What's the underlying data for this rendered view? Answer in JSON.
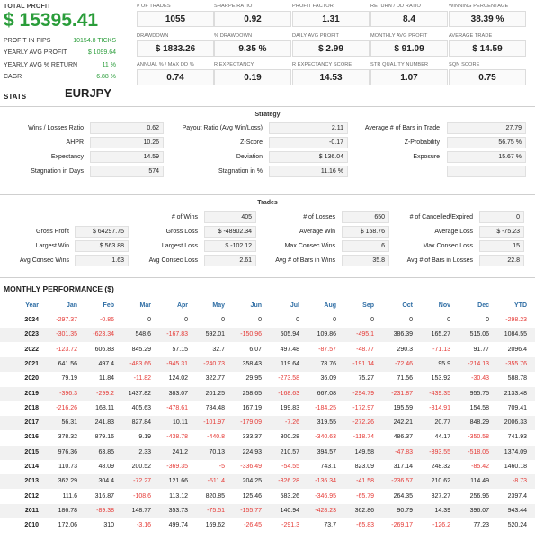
{
  "summary": {
    "total_profit_label": "TOTAL PROFIT",
    "total_profit_value": "$ 15395.41",
    "rows": [
      {
        "label": "PROFIT IN PIPS",
        "value": "10154.8 TICKS"
      },
      {
        "label": "YEARLY AVG PROFIT",
        "value": "$ 1099.64"
      },
      {
        "label": "YEARLY AVG % RETURN",
        "value": "11 %"
      },
      {
        "label": "CAGR",
        "value": "6.88 %"
      }
    ],
    "stats_label": "STATS",
    "symbol": "EURJPY"
  },
  "kpis": [
    {
      "label": "# OF TRADES",
      "value": "1055"
    },
    {
      "label": "SHARPE RATIO",
      "value": "0.92"
    },
    {
      "label": "PROFIT FACTOR",
      "value": "1.31"
    },
    {
      "label": "RETURN / DD RATIO",
      "value": "8.4"
    },
    {
      "label": "WINNING PERCENTAGE",
      "value": "38.39 %"
    },
    {
      "label": "DRAWDOWN",
      "value": "$ 1833.26"
    },
    {
      "label": "% DRAWDOWN",
      "value": "9.35 %"
    },
    {
      "label": "DAILY AVG PROFIT",
      "value": "$ 2.99"
    },
    {
      "label": "MONTHLY AVG PROFIT",
      "value": "$ 91.09"
    },
    {
      "label": "AVERAGE TRADE",
      "value": "$ 14.59"
    },
    {
      "label": "ANNUAL % / MAX DD %",
      "value": "0.74"
    },
    {
      "label": "R EXPECTANCY",
      "value": "0.19"
    },
    {
      "label": "R EXPECTANCY SCORE",
      "value": "14.53"
    },
    {
      "label": "STR QUALITY NUMBER",
      "value": "1.07"
    },
    {
      "label": "SQN SCORE",
      "value": "0.75"
    }
  ],
  "strategy": {
    "title": "Strategy",
    "rows": [
      [
        {
          "label": "Wins / Losses Ratio",
          "value": "0.62"
        },
        {
          "label": "Payout Ratio (Avg Win/Loss)",
          "value": "2.11"
        },
        {
          "label": "Average # of Bars in Trade",
          "value": "27.79"
        }
      ],
      [
        {
          "label": "AHPR",
          "value": "10.26"
        },
        {
          "label": "Z-Score",
          "value": "-0.17"
        },
        {
          "label": "Z-Probability",
          "value": "56.75 %"
        }
      ],
      [
        {
          "label": "Expectancy",
          "value": "14.59"
        },
        {
          "label": "Deviation",
          "value": "$ 136.04"
        },
        {
          "label": "Exposure",
          "value": "15.67 %"
        }
      ],
      [
        {
          "label": "Stagnation in Days",
          "value": "574"
        },
        {
          "label": "Stagnation in %",
          "value": "11.16 %"
        },
        {
          "label": "",
          "value": ""
        }
      ]
    ]
  },
  "trades": {
    "title": "Trades",
    "rows": [
      [
        {
          "label": "",
          "value": ""
        },
        {
          "label": "# of Wins",
          "value": "405"
        },
        {
          "label": "# of Losses",
          "value": "650"
        },
        {
          "label": "# of Cancelled/Expired",
          "value": "0"
        }
      ],
      [
        {
          "label": "Gross Profit",
          "value": "$ 64297.75"
        },
        {
          "label": "Gross Loss",
          "value": "$ -48902.34"
        },
        {
          "label": "Average Win",
          "value": "$ 158.76"
        },
        {
          "label": "Average Loss",
          "value": "$ -75.23"
        }
      ],
      [
        {
          "label": "Largest Win",
          "value": "$ 563.88"
        },
        {
          "label": "Largest Loss",
          "value": "$ -102.12"
        },
        {
          "label": "Max Consec Wins",
          "value": "6"
        },
        {
          "label": "Max Consec Loss",
          "value": "15"
        }
      ],
      [
        {
          "label": "Avg Consec Wins",
          "value": "1.63"
        },
        {
          "label": "Avg Consec Loss",
          "value": "2.61"
        },
        {
          "label": "Avg # of Bars in Wins",
          "value": "35.8"
        },
        {
          "label": "Avg # of Bars in Losses",
          "value": "22.8"
        }
      ]
    ]
  },
  "monthly": {
    "title": "MONTHLY PERFORMANCE ($)",
    "headers": [
      "Year",
      "Jan",
      "Feb",
      "Mar",
      "Apr",
      "May",
      "Jun",
      "Jul",
      "Aug",
      "Sep",
      "Oct",
      "Nov",
      "Dec",
      "YTD"
    ],
    "rows": [
      {
        "year": "2024",
        "values": [
          "-297.37",
          "-0.86",
          "0",
          "0",
          "0",
          "0",
          "0",
          "0",
          "0",
          "0",
          "0",
          "0",
          "-298.23"
        ]
      },
      {
        "year": "2023",
        "values": [
          "-301.35",
          "-623.34",
          "548.6",
          "-167.83",
          "592.01",
          "-150.96",
          "505.94",
          "109.86",
          "-495.1",
          "386.39",
          "165.27",
          "515.06",
          "1084.55"
        ]
      },
      {
        "year": "2022",
        "values": [
          "-123.72",
          "606.83",
          "845.29",
          "57.15",
          "32.7",
          "6.07",
          "497.48",
          "-87.57",
          "-48.77",
          "290.3",
          "-71.13",
          "91.77",
          "2096.4"
        ]
      },
      {
        "year": "2021",
        "values": [
          "641.56",
          "497.4",
          "-483.66",
          "-945.31",
          "-240.73",
          "358.43",
          "119.64",
          "78.76",
          "-191.14",
          "-72.46",
          "95.9",
          "-214.13",
          "-355.76"
        ]
      },
      {
        "year": "2020",
        "values": [
          "79.19",
          "11.84",
          "-11.82",
          "124.02",
          "322.77",
          "29.95",
          "-273.58",
          "36.09",
          "75.27",
          "71.56",
          "153.92",
          "-30.43",
          "588.78"
        ]
      },
      {
        "year": "2019",
        "values": [
          "-396.3",
          "-299.2",
          "1437.82",
          "383.07",
          "201.25",
          "258.65",
          "-168.63",
          "667.08",
          "-294.79",
          "-231.87",
          "-439.35",
          "955.75",
          "2133.48"
        ]
      },
      {
        "year": "2018",
        "values": [
          "-216.26",
          "168.11",
          "405.63",
          "-478.61",
          "784.48",
          "167.19",
          "199.83",
          "-184.25",
          "-172.97",
          "195.59",
          "-314.91",
          "154.58",
          "709.41"
        ]
      },
      {
        "year": "2017",
        "values": [
          "56.31",
          "241.83",
          "827.84",
          "10.11",
          "-101.97",
          "-179.09",
          "-7.26",
          "319.55",
          "-272.26",
          "242.21",
          "20.77",
          "848.29",
          "2006.33"
        ]
      },
      {
        "year": "2016",
        "values": [
          "378.32",
          "879.16",
          "9.19",
          "-438.78",
          "-440.8",
          "333.37",
          "300.28",
          "-340.63",
          "-118.74",
          "486.37",
          "44.17",
          "-350.58",
          "741.93"
        ]
      },
      {
        "year": "2015",
        "values": [
          "976.36",
          "63.85",
          "2.33",
          "241.2",
          "70.13",
          "224.93",
          "210.57",
          "394.57",
          "149.58",
          "-47.83",
          "-393.55",
          "-518.05",
          "1374.09"
        ]
      },
      {
        "year": "2014",
        "values": [
          "110.73",
          "48.09",
          "200.52",
          "-369.35",
          "-5",
          "-336.49",
          "-54.55",
          "743.1",
          "823.09",
          "317.14",
          "248.32",
          "-85.42",
          "1460.18"
        ]
      },
      {
        "year": "2013",
        "values": [
          "362.29",
          "304.4",
          "-72.27",
          "121.66",
          "-511.4",
          "204.25",
          "-326.28",
          "-136.34",
          "-41.58",
          "-236.57",
          "210.62",
          "114.49",
          "-8.73"
        ]
      },
      {
        "year": "2012",
        "values": [
          "111.6",
          "316.87",
          "-108.6",
          "113.12",
          "820.85",
          "125.46",
          "583.26",
          "-346.95",
          "-65.79",
          "264.35",
          "327.27",
          "256.96",
          "2397.4"
        ]
      },
      {
        "year": "2011",
        "values": [
          "186.78",
          "-89.38",
          "148.77",
          "353.73",
          "-75.51",
          "-155.77",
          "140.94",
          "-428.23",
          "362.86",
          "90.79",
          "14.39",
          "396.07",
          "943.44"
        ]
      },
      {
        "year": "2010",
        "values": [
          "172.06",
          "310",
          "-3.16",
          "499.74",
          "169.62",
          "-26.45",
          "-291.3",
          "73.7",
          "-65.83",
          "-269.17",
          "-126.2",
          "77.23",
          "520.24"
        ]
      }
    ]
  },
  "colors": {
    "positive": "#2a9d3a",
    "negative": "#e53935",
    "header": "#2e6da4"
  }
}
